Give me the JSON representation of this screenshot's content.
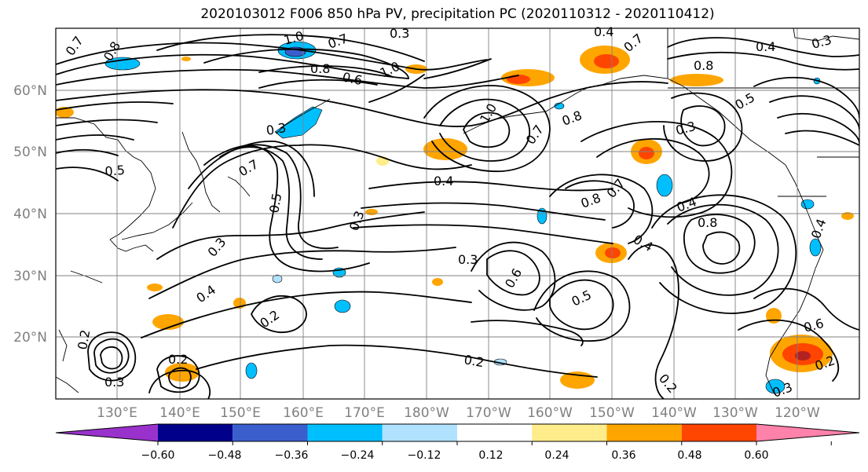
{
  "title": "2020103012 F006 850 hPa PV, precipitation PC (2020110312 - 2020110412)",
  "lat_labels": [
    "60°N",
    "50°N",
    "40°N",
    "30°N",
    "20°N"
  ],
  "lon_labels": [
    "130°E",
    "140°E",
    "150°E",
    "160°E",
    "170°E",
    "180°W",
    "170°W",
    "160°W",
    "150°W",
    "140°W",
    "130°W",
    "120°W"
  ],
  "colorbar": {
    "colors": [
      "#9932cc",
      "#00008b",
      "#3a5fcd",
      "#00bfff",
      "#b0e2ff",
      "#ffffff",
      "#ffec8b",
      "#ffa500",
      "#ff4500",
      "#b22222",
      "#ff82ab"
    ],
    "tick_labels": [
      "−0.60",
      "−0.48",
      "−0.36",
      "−0.24",
      "−0.12",
      "0.12",
      "0.24",
      "0.36",
      "0.48",
      "0.60"
    ]
  },
  "contour_labels": [
    "0.7",
    "0.8",
    "1.0",
    "0.3",
    "0.7",
    "0.8",
    "0.6",
    "1.0",
    "0.4",
    "0.7",
    "0.8",
    "0.3",
    "0.5",
    "0.4",
    "0.3",
    "1.0",
    "0.7",
    "0.8",
    "0.3",
    "0.7",
    "0.5",
    "0.3",
    "0.4",
    "0.5",
    "0.3",
    "0.4",
    "0.8",
    "0.7",
    "0.4",
    "0.8",
    "0.4",
    "0.3",
    "0.6",
    "0.2",
    "0.5",
    "0.2",
    "0.2",
    "0.2",
    "0.3",
    "0.2",
    "0.6",
    "0.2",
    "0.3",
    "0.4"
  ]
}
